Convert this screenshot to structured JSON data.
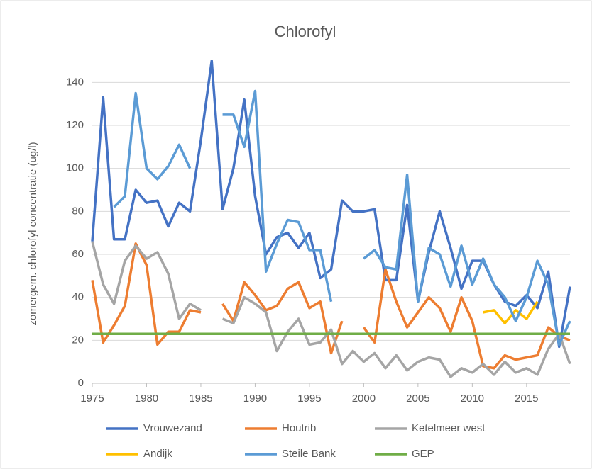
{
  "chart_data": {
    "type": "line",
    "title": "Chlorofyl",
    "ylabel": "zomergem. chlorofyl concentratie (ug/l)",
    "x": [
      1975,
      1976,
      1977,
      1978,
      1979,
      1980,
      1981,
      1982,
      1983,
      1984,
      1985,
      1986,
      1987,
      1988,
      1989,
      1990,
      1991,
      1992,
      1993,
      1994,
      1995,
      1996,
      1997,
      1998,
      1999,
      2000,
      2001,
      2002,
      2003,
      2004,
      2005,
      2006,
      2007,
      2008,
      2009,
      2010,
      2011,
      2012,
      2013,
      2014,
      2015,
      2016,
      2017,
      2018,
      2019
    ],
    "xlim": [
      1975,
      2019
    ],
    "xticks": [
      1975,
      1980,
      1985,
      1990,
      1995,
      2000,
      2005,
      2010,
      2015
    ],
    "ylim": [
      0,
      150
    ],
    "yticks": [
      0,
      20,
      40,
      60,
      80,
      100,
      120,
      140
    ],
    "grid": true,
    "legend": "bottom",
    "series": [
      {
        "name": "Vrouwezand",
        "color": "#4472c4",
        "values": [
          66,
          133,
          67,
          67,
          90,
          84,
          85,
          73,
          84,
          80,
          113,
          150,
          81,
          100,
          132,
          87,
          60,
          68,
          70,
          63,
          70,
          49,
          53,
          85,
          80,
          80,
          81,
          48,
          48,
          83,
          38,
          61,
          80,
          63,
          44,
          57,
          57,
          46,
          38,
          36,
          41,
          35,
          52,
          17,
          45
        ]
      },
      {
        "name": "Houtrib",
        "color": "#ed7d31",
        "values": [
          48,
          19,
          27,
          36,
          65,
          55,
          18,
          24,
          24,
          34,
          33,
          null,
          37,
          29,
          47,
          41,
          34,
          36,
          44,
          47,
          35,
          38,
          14,
          29,
          null,
          26,
          19,
          53,
          38,
          26,
          33,
          40,
          35,
          24,
          40,
          29,
          8,
          7,
          13,
          11,
          12,
          13,
          26,
          22,
          20
        ]
      },
      {
        "name": "Ketelmeer west",
        "color": "#a5a5a5",
        "values": [
          66,
          46,
          37,
          57,
          64,
          58,
          61,
          51,
          30,
          37,
          34,
          null,
          30,
          28,
          40,
          37,
          33,
          15,
          24,
          30,
          18,
          19,
          25,
          9,
          15,
          10,
          14,
          7,
          13,
          6,
          10,
          12,
          11,
          3,
          7,
          5,
          9,
          4,
          10,
          5,
          7,
          4,
          16,
          23,
          9
        ]
      },
      {
        "name": "Andijk",
        "color": "#ffc000",
        "values": [
          null,
          null,
          null,
          null,
          null,
          null,
          null,
          null,
          null,
          null,
          null,
          null,
          null,
          null,
          null,
          null,
          null,
          null,
          null,
          null,
          null,
          null,
          null,
          null,
          null,
          null,
          null,
          null,
          null,
          null,
          null,
          null,
          null,
          null,
          null,
          null,
          33,
          34,
          28,
          34,
          30,
          38,
          null,
          null,
          null
        ]
      },
      {
        "name": "Steile Bank",
        "color": "#5b9bd5",
        "values": [
          null,
          null,
          82,
          87,
          135,
          100,
          95,
          101,
          111,
          100,
          null,
          null,
          125,
          125,
          110,
          136,
          52,
          65,
          76,
          75,
          62,
          62,
          38,
          null,
          null,
          58,
          62,
          54,
          53,
          97,
          38,
          63,
          60,
          45,
          64,
          46,
          58,
          46,
          40,
          29,
          40,
          57,
          46,
          18,
          29
        ]
      },
      {
        "name": "GEP",
        "color": "#70ad47",
        "values": [
          23,
          23,
          23,
          23,
          23,
          23,
          23,
          23,
          23,
          23,
          23,
          23,
          23,
          23,
          23,
          23,
          23,
          23,
          23,
          23,
          23,
          23,
          23,
          23,
          23,
          23,
          23,
          23,
          23,
          23,
          23,
          23,
          23,
          23,
          23,
          23,
          23,
          23,
          23,
          23,
          23,
          23,
          23,
          23,
          23
        ]
      }
    ]
  }
}
